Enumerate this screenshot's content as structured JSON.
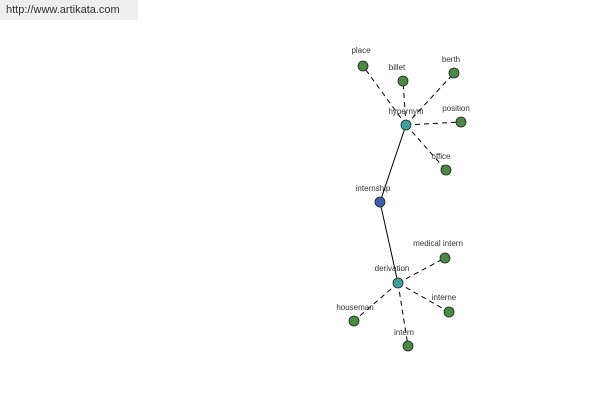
{
  "header": {
    "url": "http://www.artikata.com"
  },
  "nodes": [
    {
      "label": "internship"
    },
    {
      "label": "hypernym"
    },
    {
      "label": "derivation"
    },
    {
      "label": "place"
    },
    {
      "label": "billet"
    },
    {
      "label": "berth"
    },
    {
      "label": "position"
    },
    {
      "label": "office"
    },
    {
      "label": "medical intern"
    },
    {
      "label": "interne"
    },
    {
      "label": "intern"
    },
    {
      "label": "houseman"
    }
  ]
}
